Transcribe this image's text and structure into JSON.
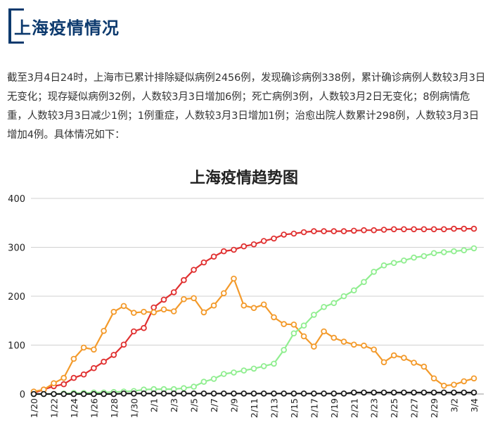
{
  "page": {
    "title": "上海疫情情况",
    "paragraph": "截至3月4日24时，上海市已累计排除疑似病例2456例，发现确诊病例338例，累计确诊病例人数较3月3日无变化；现存疑似病例32例，人数较3月3日增加6例；死亡病例3例，人数较3月2日无变化；8例病情危重，人数较3月3日减少1例；1例重症，人数较3月3日增加1例；治愈出院人数累计298例，人数较3月3日增加4例。具体情况如下："
  },
  "chart_data": {
    "type": "line",
    "title": "上海疫情趋势图",
    "xlabel": "",
    "ylabel": "",
    "ylim": [
      0,
      400
    ],
    "yticks": [
      0,
      100,
      200,
      300,
      400
    ],
    "grid": true,
    "legend": "none",
    "x": [
      "1/20",
      "1/21",
      "1/22",
      "1/23",
      "1/24",
      "1/25",
      "1/26",
      "1/27",
      "1/28",
      "1/29",
      "1/30",
      "1/31",
      "2/1",
      "2/2",
      "2/3",
      "2/4",
      "2/5",
      "2/6",
      "2/7",
      "2/8",
      "2/9",
      "2/10",
      "2/11",
      "2/12",
      "2/13",
      "2/14",
      "2/15",
      "2/16",
      "2/17",
      "2/18",
      "2/19",
      "2/20",
      "2/21",
      "2/22",
      "2/23",
      "2/24",
      "2/25",
      "2/26",
      "2/27",
      "2/28",
      "2/29",
      "3/1",
      "3/2",
      "3/3",
      "3/4"
    ],
    "xtick_labels": [
      "1/20",
      "1/22",
      "1/24",
      "1/26",
      "1/28",
      "1/30",
      "2/1",
      "2/3",
      "2/5",
      "2/7",
      "2/9",
      "2/11",
      "2/13",
      "2/15",
      "2/17",
      "2/19",
      "2/21",
      "2/23",
      "2/25",
      "2/27",
      "2/29",
      "3/2",
      "3/4"
    ],
    "series": [
      {
        "color": "#e03030",
        "values": [
          2,
          9,
          16,
          20,
          33,
          40,
          53,
          66,
          80,
          101,
          128,
          135,
          177,
          193,
          208,
          233,
          254,
          269,
          281,
          292,
          295,
          302,
          306,
          313,
          318,
          326,
          328,
          331,
          333,
          333,
          333,
          333,
          334,
          335,
          335,
          336,
          337,
          337,
          337,
          337,
          337,
          337,
          338,
          338,
          338
        ]
      },
      {
        "color": "#f39a2b",
        "values": [
          5,
          9,
          22,
          33,
          72,
          95,
          91,
          129,
          168,
          180,
          166,
          168,
          167,
          173,
          169,
          194,
          196,
          167,
          181,
          206,
          236,
          181,
          176,
          183,
          157,
          143,
          142,
          118,
          97,
          128,
          115,
          107,
          101,
          99,
          91,
          65,
          79,
          74,
          64,
          56,
          32,
          17,
          19,
          26,
          32
        ]
      },
      {
        "color": "#90ee90",
        "values": [
          0,
          0,
          0,
          1,
          2,
          2,
          3,
          3,
          4,
          5,
          6,
          9,
          10,
          10,
          10,
          12,
          15,
          25,
          31,
          41,
          44,
          48,
          52,
          57,
          62,
          90,
          124,
          140,
          162,
          178,
          186,
          200,
          212,
          229,
          250,
          263,
          268,
          273,
          279,
          282,
          288,
          290,
          292,
          294,
          298
        ]
      },
      {
        "color": "#1a1a1a",
        "values": [
          0,
          0,
          0,
          0,
          0,
          0,
          0,
          0,
          0,
          1,
          1,
          1,
          1,
          1,
          1,
          1,
          1,
          1,
          1,
          1,
          1,
          1,
          1,
          1,
          1,
          1,
          1,
          1,
          1,
          1,
          1,
          1,
          3,
          3,
          3,
          3,
          3,
          3,
          3,
          3,
          3,
          3,
          3,
          3,
          3
        ]
      }
    ]
  }
}
